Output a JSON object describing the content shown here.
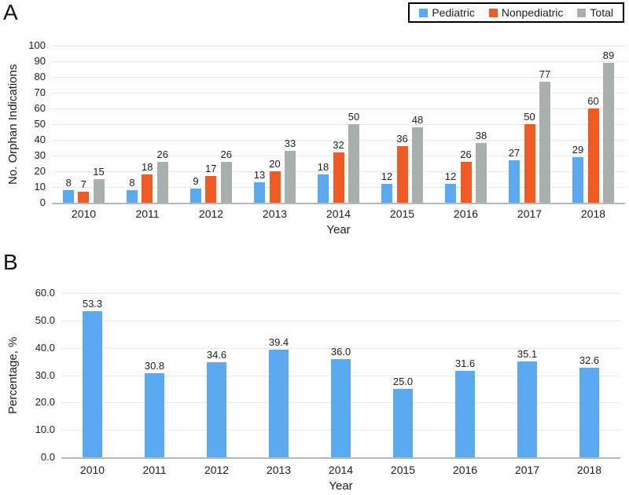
{
  "panels": {
    "a_label": "A",
    "b_label": "B"
  },
  "colors": {
    "pediatric_blue": "#5aa9f1",
    "nonpediatric_orange": "#f15a22",
    "total_gray": "#a9afaf",
    "gridline": "#e5e8e8",
    "axis_line": "#b3b9b9"
  },
  "chart_data": [
    {
      "type": "bar",
      "categories": [
        "2010",
        "2011",
        "2012",
        "2013",
        "2014",
        "2015",
        "2016",
        "2017",
        "2018"
      ],
      "series": [
        {
          "name": "Pediatric",
          "color": "#5aa9f1",
          "values": [
            8,
            8,
            9,
            13,
            18,
            12,
            12,
            27,
            29
          ],
          "labels": [
            "8",
            "8",
            "9",
            "13",
            "18",
            "12",
            "12",
            "27",
            "29"
          ]
        },
        {
          "name": "Nonpediatric",
          "color": "#f15a22",
          "values": [
            7,
            18,
            17,
            20,
            32,
            36,
            26,
            50,
            60
          ],
          "labels": [
            "7",
            "18",
            "17",
            "20",
            "32",
            "36",
            "26",
            "50",
            "60"
          ]
        },
        {
          "name": "Total",
          "color": "#a9afaf",
          "values": [
            15,
            26,
            26,
            33,
            50,
            48,
            38,
            77,
            89
          ],
          "labels": [
            "15",
            "26",
            "26",
            "33",
            "50",
            "48",
            "38",
            "77",
            "89"
          ]
        }
      ],
      "xlabel": "Year",
      "ylabel": "No. Orphan Indications",
      "ylim": [
        0,
        100
      ],
      "ytick_labels": [
        "0",
        "10",
        "20",
        "30",
        "40",
        "50",
        "60",
        "70",
        "80",
        "90",
        "100"
      ],
      "grid": true,
      "legend_position": "top-right"
    },
    {
      "type": "bar",
      "categories": [
        "2010",
        "2011",
        "2012",
        "2013",
        "2014",
        "2015",
        "2016",
        "2017",
        "2018"
      ],
      "series": [
        {
          "color": "#5aa9f1",
          "values": [
            53.3,
            30.8,
            34.6,
            39.4,
            36.0,
            25.0,
            31.6,
            35.1,
            32.6
          ],
          "labels": [
            "53.3",
            "30.8",
            "34.6",
            "39.4",
            "36.0",
            "25.0",
            "31.6",
            "35.1",
            "32.6"
          ]
        }
      ],
      "xlabel": "Year",
      "ylabel": "Percentage, %",
      "ylim": [
        0,
        60
      ],
      "ytick_labels": [
        "0.0",
        "10.0",
        "20.0",
        "30.0",
        "40.0",
        "50.0",
        "60.0"
      ],
      "grid": true,
      "legend_position": "none"
    }
  ]
}
